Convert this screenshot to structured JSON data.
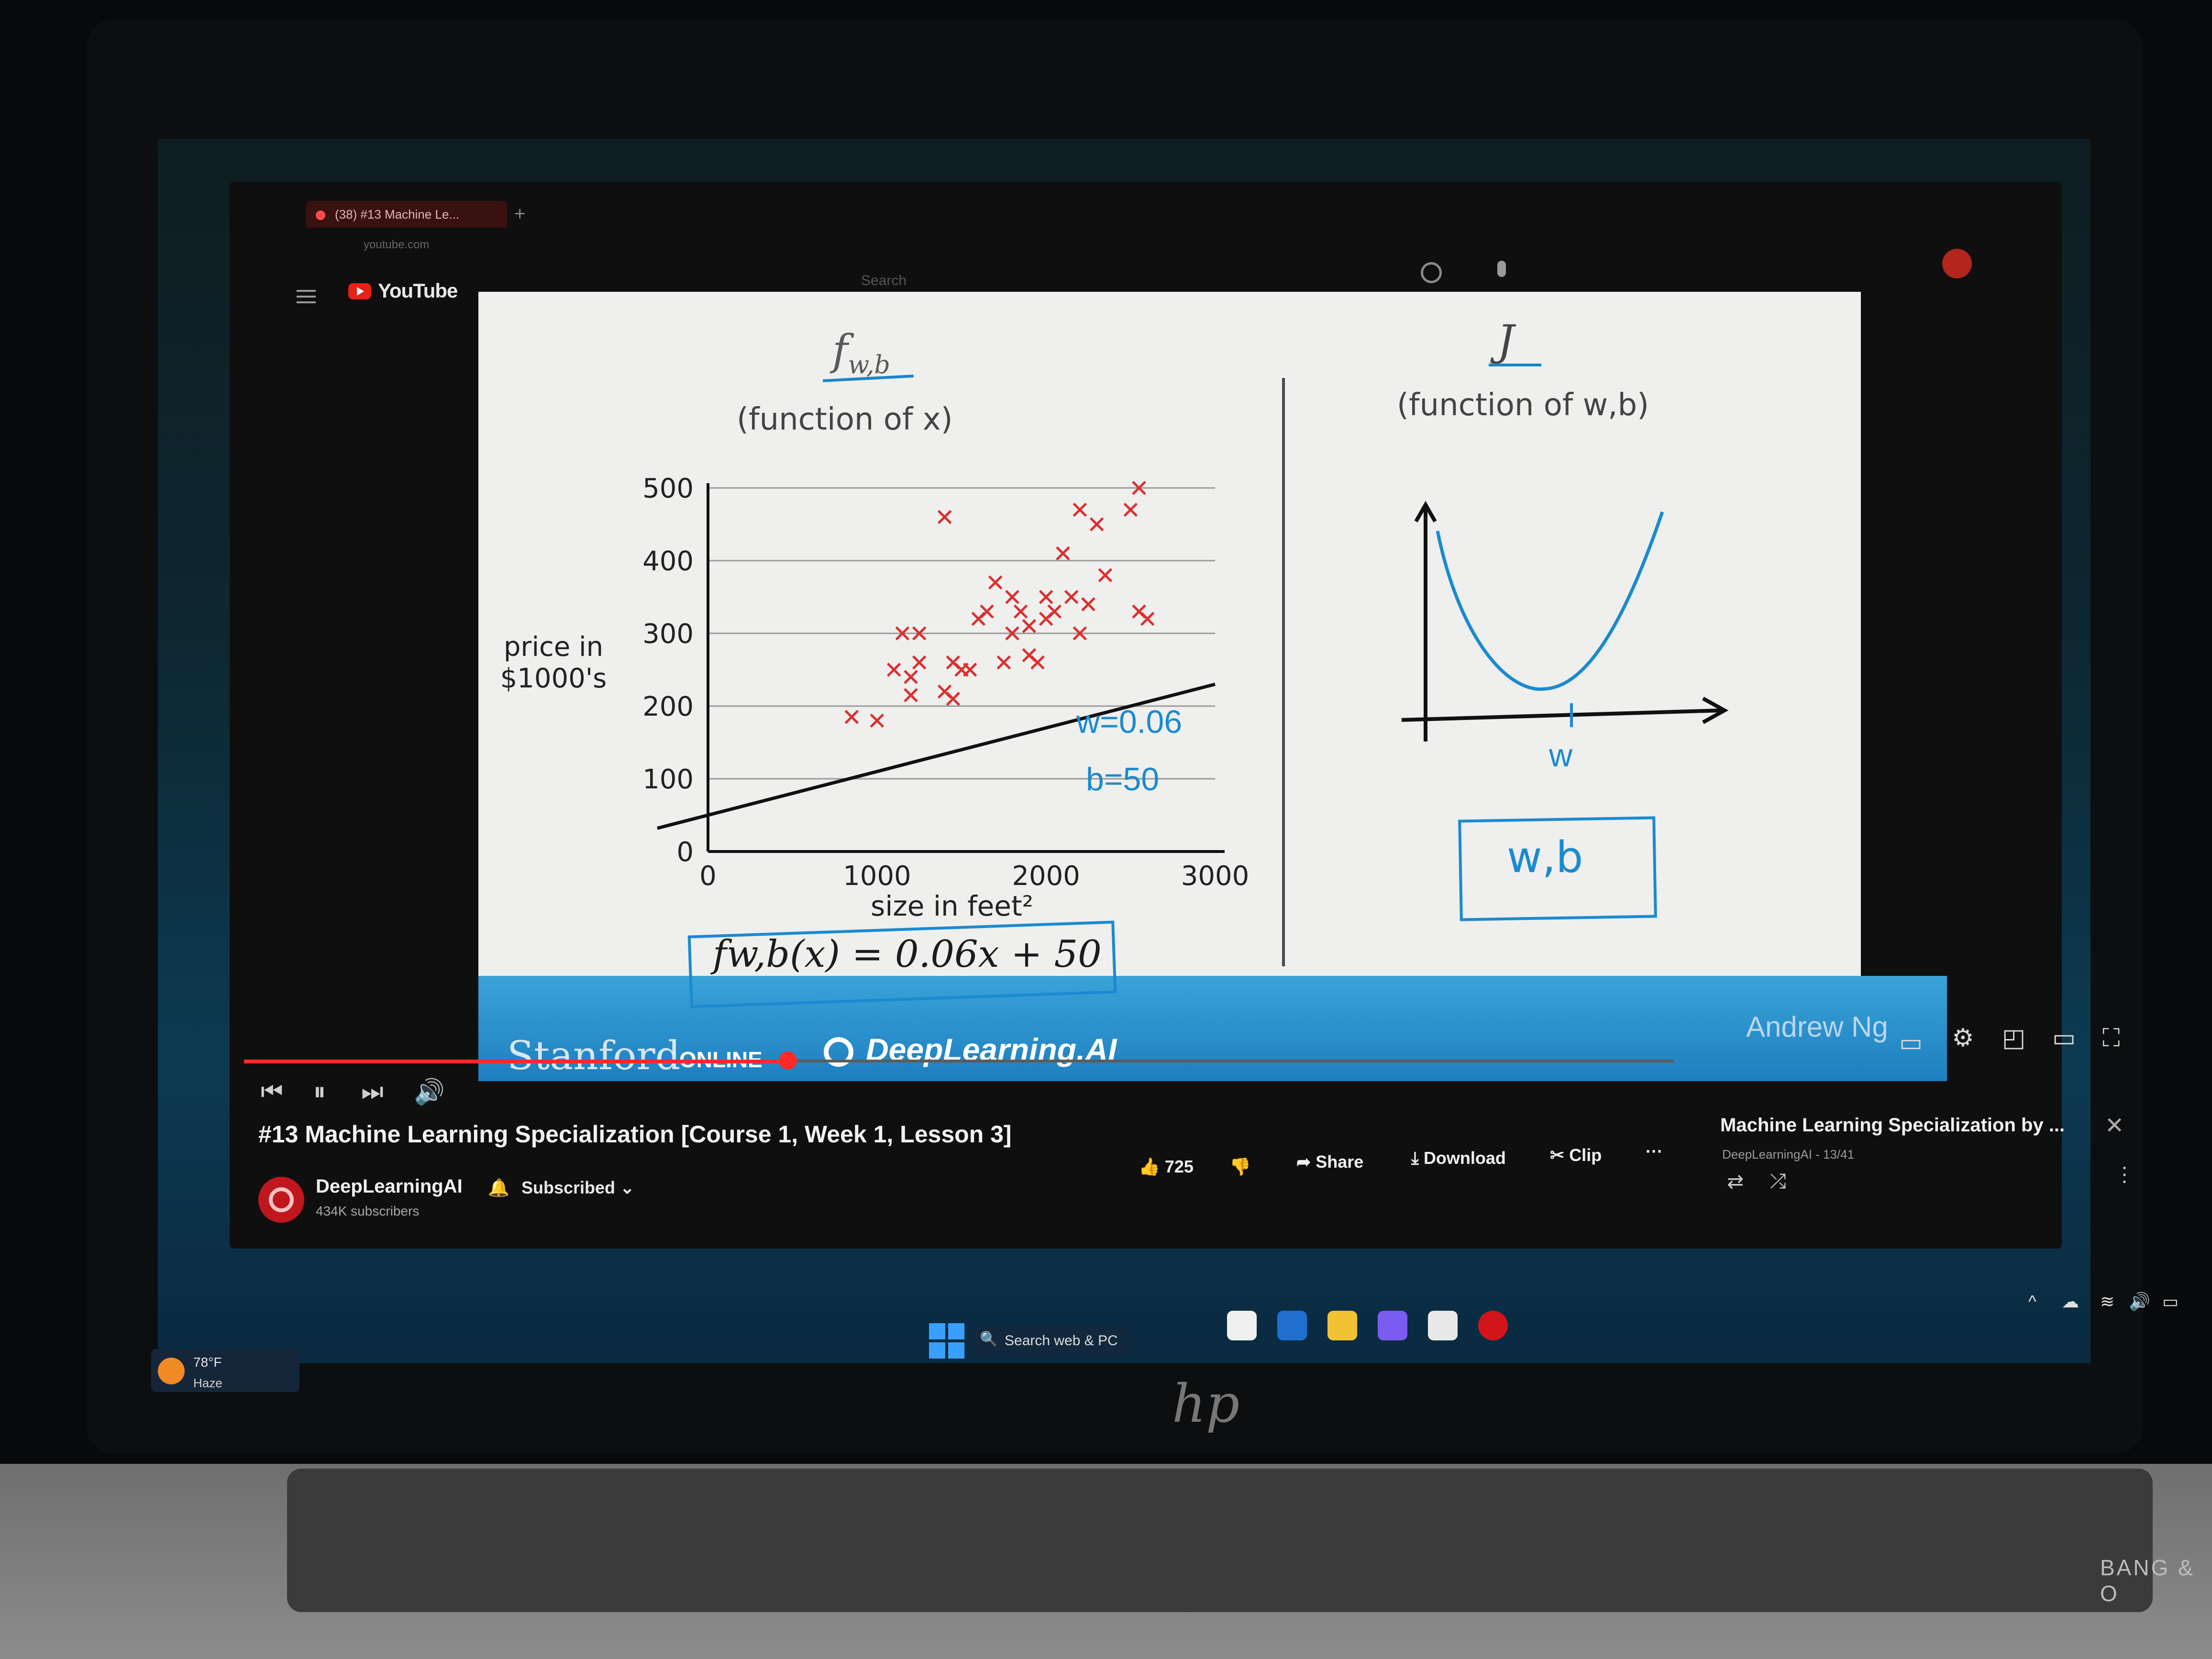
{
  "browser": {
    "tab_title": "(38) #13 Machine Le...",
    "address": "youtube.com"
  },
  "youtube": {
    "logo_text": "YouTube",
    "search_placeholder": "Search"
  },
  "slide": {
    "left_title": "f",
    "left_title_sub": "w,b",
    "left_subtitle": "(function of x)",
    "right_title": "J",
    "right_subtitle": "(function of w,b)",
    "ylabel_line1": "price in",
    "ylabel_line2": "$1000's",
    "xlabel": "size in feet²",
    "annotation_w": "w=0.06",
    "annotation_b": "b=50",
    "equation": "fw,b(x) = 0.06x + 50",
    "box_wb": "w,b",
    "axis_w": "w",
    "footer_stanford": "Stanford",
    "footer_online": "ONLINE",
    "footer_deeplearning": "DeepLearning.AI",
    "footer_author": "Andrew Ng"
  },
  "chart_data": {
    "type": "scatter",
    "xlabel": "size in feet²",
    "ylabel": "price in $1000's",
    "xlim": [
      0,
      3000
    ],
    "ylim": [
      0,
      500
    ],
    "xticks": [
      "0",
      "1000",
      "2000",
      "3000"
    ],
    "yticks": [
      "0",
      "100",
      "200",
      "300",
      "400",
      "500"
    ],
    "series": [
      {
        "values": [
          [
            850,
            185
          ],
          [
            1000,
            180
          ],
          [
            1100,
            250
          ],
          [
            1150,
            300
          ],
          [
            1200,
            240
          ],
          [
            1200,
            215
          ],
          [
            1250,
            260
          ],
          [
            1250,
            300
          ],
          [
            1400,
            220
          ],
          [
            1400,
            460
          ],
          [
            1450,
            210
          ],
          [
            1450,
            260
          ],
          [
            1500,
            250
          ],
          [
            1550,
            250
          ],
          [
            1600,
            320
          ],
          [
            1650,
            330
          ],
          [
            1700,
            370
          ],
          [
            1750,
            260
          ],
          [
            1800,
            350
          ],
          [
            1800,
            300
          ],
          [
            1850,
            330
          ],
          [
            1900,
            310
          ],
          [
            1900,
            270
          ],
          [
            1950,
            260
          ],
          [
            2000,
            350
          ],
          [
            2000,
            320
          ],
          [
            2050,
            330
          ],
          [
            2100,
            410
          ],
          [
            2150,
            350
          ],
          [
            2200,
            300
          ],
          [
            2200,
            470
          ],
          [
            2250,
            340
          ],
          [
            2300,
            450
          ],
          [
            2350,
            380
          ],
          [
            2500,
            470
          ],
          [
            2550,
            330
          ],
          [
            2550,
            500
          ],
          [
            2600,
            320
          ]
        ]
      }
    ],
    "fit_line": {
      "w": 0.06,
      "b": 50
    }
  },
  "player": {
    "icons": [
      "prev-icon",
      "pause-icon",
      "next-icon",
      "volume-icon",
      "subtitles-icon",
      "settings-icon",
      "miniplayer-icon",
      "theater-icon",
      "fullscreen-icon"
    ]
  },
  "video": {
    "title": "#13 Machine Learning Specialization [Course 1, Week 1, Lesson 3]",
    "channel": "DeepLearningAI",
    "subscribers": "434K subscribers",
    "subscribed_label": "Subscribed",
    "likes": "725",
    "share_label": "Share",
    "download_label": "Download",
    "clip_label": "Clip",
    "more_label": "···"
  },
  "playlist": {
    "title": "Machine Learning Specialization by ...",
    "subtitle": "DeepLearningAI - 13/41"
  },
  "taskbar": {
    "weather_temp": "78°F",
    "weather_desc": "Haze",
    "search_placeholder": "Search web & PC"
  },
  "laptop": {
    "brand": "hp",
    "speaker_brand": "BANG & O"
  },
  "colors": {
    "youtube_red": "#ff2a2a",
    "marker_red": "#d93030",
    "ink_blue": "#1b8ad0",
    "band_blue": "#2a90cc"
  }
}
